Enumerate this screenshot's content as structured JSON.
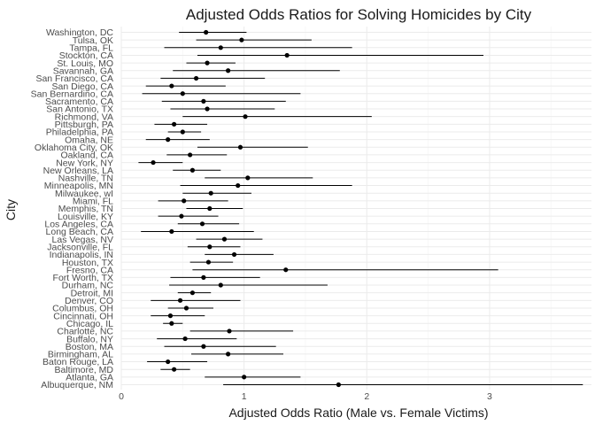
{
  "chart_data": {
    "type": "scatter",
    "subtype": "forest-plot",
    "title": "Adjusted Odds Ratios for Solving Homicides by City",
    "xlabel": "Adjusted Odds Ratio (Male vs. Female Victims)",
    "ylabel": "City",
    "xlim": [
      0,
      3.83
    ],
    "xticks": [
      0,
      1,
      2,
      3
    ],
    "xtick_labels": [
      "0",
      "1",
      "2",
      "3"
    ],
    "grid": true,
    "legend": "none",
    "colors": {
      "point": "#000000",
      "line": "#000000",
      "grid": "#ebebeb",
      "background": "#ffffff"
    },
    "cities": [
      {
        "name": "Albuquerque, NM",
        "or": 1.77,
        "lo": 0.83,
        "hi": 3.76
      },
      {
        "name": "Atlanta, GA",
        "or": 1.0,
        "lo": 0.68,
        "hi": 1.46
      },
      {
        "name": "Baltimore, MD",
        "or": 0.43,
        "lo": 0.32,
        "hi": 0.56
      },
      {
        "name": "Baton Rouge, LA",
        "or": 0.38,
        "lo": 0.21,
        "hi": 0.7
      },
      {
        "name": "Birmingham, AL",
        "or": 0.87,
        "lo": 0.57,
        "hi": 1.32
      },
      {
        "name": "Boston, MA",
        "or": 0.67,
        "lo": 0.35,
        "hi": 1.26
      },
      {
        "name": "Buffalo, NY",
        "or": 0.52,
        "lo": 0.29,
        "hi": 0.94
      },
      {
        "name": "Charlotte, NC",
        "or": 0.88,
        "lo": 0.56,
        "hi": 1.4
      },
      {
        "name": "Chicago, IL",
        "or": 0.41,
        "lo": 0.34,
        "hi": 0.5
      },
      {
        "name": "Cincinnati, OH",
        "or": 0.4,
        "lo": 0.24,
        "hi": 0.68
      },
      {
        "name": "Columbus, OH",
        "or": 0.53,
        "lo": 0.38,
        "hi": 0.75
      },
      {
        "name": "Denver, CO",
        "or": 0.48,
        "lo": 0.24,
        "hi": 0.97
      },
      {
        "name": "Detroit, MI",
        "or": 0.58,
        "lo": 0.46,
        "hi": 0.73
      },
      {
        "name": "Durham, NC",
        "or": 0.81,
        "lo": 0.39,
        "hi": 1.68
      },
      {
        "name": "Fort Worth, TX",
        "or": 0.67,
        "lo": 0.4,
        "hi": 1.13
      },
      {
        "name": "Fresno, CA",
        "or": 1.34,
        "lo": 0.58,
        "hi": 3.07
      },
      {
        "name": "Houston, TX",
        "or": 0.71,
        "lo": 0.56,
        "hi": 0.91
      },
      {
        "name": "Indianapolis, IN",
        "or": 0.92,
        "lo": 0.68,
        "hi": 1.24
      },
      {
        "name": "Jacksonville, FL",
        "or": 0.72,
        "lo": 0.54,
        "hi": 0.97
      },
      {
        "name": "Las Vegas, NV",
        "or": 0.84,
        "lo": 0.61,
        "hi": 1.15
      },
      {
        "name": "Long Beach, CA",
        "or": 0.41,
        "lo": 0.16,
        "hi": 1.08
      },
      {
        "name": "Los Angeles, CA",
        "or": 0.66,
        "lo": 0.46,
        "hi": 0.96
      },
      {
        "name": "Louisville, KY",
        "or": 0.49,
        "lo": 0.3,
        "hi": 0.79
      },
      {
        "name": "Memphis, TN",
        "or": 0.72,
        "lo": 0.53,
        "hi": 0.99
      },
      {
        "name": "Miami, FL",
        "or": 0.51,
        "lo": 0.3,
        "hi": 0.87
      },
      {
        "name": "Milwaukee, wI",
        "or": 0.73,
        "lo": 0.5,
        "hi": 1.06
      },
      {
        "name": "Minneapolis, MN",
        "or": 0.95,
        "lo": 0.48,
        "hi": 1.88
      },
      {
        "name": "Nashville, TN",
        "or": 1.03,
        "lo": 0.68,
        "hi": 1.56
      },
      {
        "name": "New Orleans, LA",
        "or": 0.58,
        "lo": 0.42,
        "hi": 0.81
      },
      {
        "name": "New York, NY",
        "or": 0.26,
        "lo": 0.14,
        "hi": 0.5
      },
      {
        "name": "Oakland, CA",
        "or": 0.56,
        "lo": 0.37,
        "hi": 0.86
      },
      {
        "name": "Oklahoma City, OK",
        "or": 0.97,
        "lo": 0.62,
        "hi": 1.52
      },
      {
        "name": "Omaha, NE",
        "or": 0.38,
        "lo": 0.2,
        "hi": 0.72
      },
      {
        "name": "Philadelphia, PA",
        "or": 0.5,
        "lo": 0.38,
        "hi": 0.65
      },
      {
        "name": "Pittsburgh, PA",
        "or": 0.43,
        "lo": 0.27,
        "hi": 0.7
      },
      {
        "name": "Richmond, VA",
        "or": 1.01,
        "lo": 0.5,
        "hi": 2.04
      },
      {
        "name": "San Antonio, TX",
        "or": 0.7,
        "lo": 0.4,
        "hi": 1.25
      },
      {
        "name": "Sacramento, CA",
        "or": 0.67,
        "lo": 0.33,
        "hi": 1.34
      },
      {
        "name": "San Bernardino, CA",
        "or": 0.5,
        "lo": 0.17,
        "hi": 1.46
      },
      {
        "name": "San Diego, CA",
        "or": 0.41,
        "lo": 0.2,
        "hi": 0.85
      },
      {
        "name": "San Francisco, CA",
        "or": 0.61,
        "lo": 0.32,
        "hi": 1.17
      },
      {
        "name": "Savannah, GA",
        "or": 0.87,
        "lo": 0.42,
        "hi": 1.78
      },
      {
        "name": "St. Louis, MO",
        "or": 0.7,
        "lo": 0.53,
        "hi": 0.93
      },
      {
        "name": "Stockton, CA",
        "or": 1.35,
        "lo": 0.62,
        "hi": 2.95
      },
      {
        "name": "Tampa, FL",
        "or": 0.81,
        "lo": 0.35,
        "hi": 1.88
      },
      {
        "name": "Tulsa, OK",
        "or": 0.98,
        "lo": 0.61,
        "hi": 1.55
      },
      {
        "name": "Washington, DC",
        "or": 0.69,
        "lo": 0.47,
        "hi": 1.02
      }
    ]
  }
}
